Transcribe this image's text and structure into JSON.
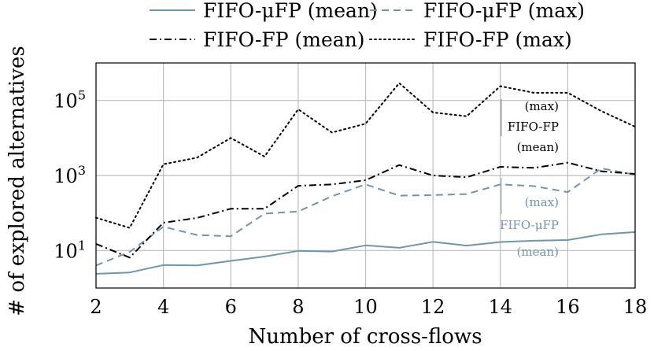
{
  "chart_data": {
    "type": "line",
    "xlabel": "Number of cross-flows",
    "ylabel": "# of explored alternatives",
    "x": [
      2,
      3,
      4,
      5,
      6,
      7,
      8,
      9,
      10,
      11,
      12,
      13,
      14,
      15,
      16,
      17,
      18
    ],
    "xlim": [
      2,
      18
    ],
    "xticks": [
      "2",
      "4",
      "6",
      "8",
      "10",
      "12",
      "14",
      "16",
      "18"
    ],
    "yscale": "log",
    "ylim": [
      1.0,
      1000000.0
    ],
    "yticks": [
      {
        "value": 10,
        "base": "10",
        "exp": "1"
      },
      {
        "value": 1000,
        "base": "10",
        "exp": "3"
      },
      {
        "value": 100000,
        "base": "10",
        "exp": "5"
      }
    ],
    "grid": true,
    "legend_position": "top",
    "series": [
      {
        "name": "FIFO-μFP (mean)",
        "color": "#6f96ad",
        "dash": "solid",
        "values": [
          2.4,
          2.6,
          4.1,
          4.0,
          5.3,
          6.9,
          9.8,
          9.4,
          13.7,
          11.8,
          17.0,
          13.5,
          16.9,
          18.2,
          19.0,
          27.0,
          31.0
        ]
      },
      {
        "name": "FIFO-μFP (max)",
        "color": "#6f96ad",
        "dash": "dashed",
        "values": [
          4.0,
          9.2,
          43.0,
          26.0,
          24.0,
          96.0,
          110.0,
          280.0,
          580.0,
          290.0,
          300.0,
          320.0,
          580.0,
          520.0,
          360.0,
          1550.0,
          1050.0
        ]
      },
      {
        "name": "FIFO-FP (mean)",
        "color": "#000000",
        "dash": "dashdot",
        "values": [
          15.0,
          6.5,
          55.0,
          74.0,
          130.0,
          130.0,
          530.0,
          580.0,
          750.0,
          1900.0,
          1000.0,
          900.0,
          1700.0,
          1600.0,
          2200.0,
          1300.0,
          1100.0
        ]
      },
      {
        "name": "FIFO-FP (max)",
        "color": "#000000",
        "dash": "dotted",
        "values": [
          75.0,
          40.0,
          2000.0,
          3000.0,
          10000.0,
          3200.0,
          58000.0,
          14000.0,
          24000.0,
          290000.0,
          48000.0,
          38000.0,
          240000.0,
          160000.0,
          160000.0,
          52000.0,
          20000.0
        ]
      }
    ],
    "annotations": [
      {
        "id": "fp-max",
        "text": "(max)"
      },
      {
        "id": "fp-name",
        "text": "FIFO-FP"
      },
      {
        "id": "fp-mean",
        "text": "(mean)"
      },
      {
        "id": "ufp-max",
        "text": "(max)"
      },
      {
        "id": "ufp-name",
        "text": "FIFO-μFP"
      },
      {
        "id": "ufp-mean",
        "text": "(mean)"
      }
    ]
  }
}
